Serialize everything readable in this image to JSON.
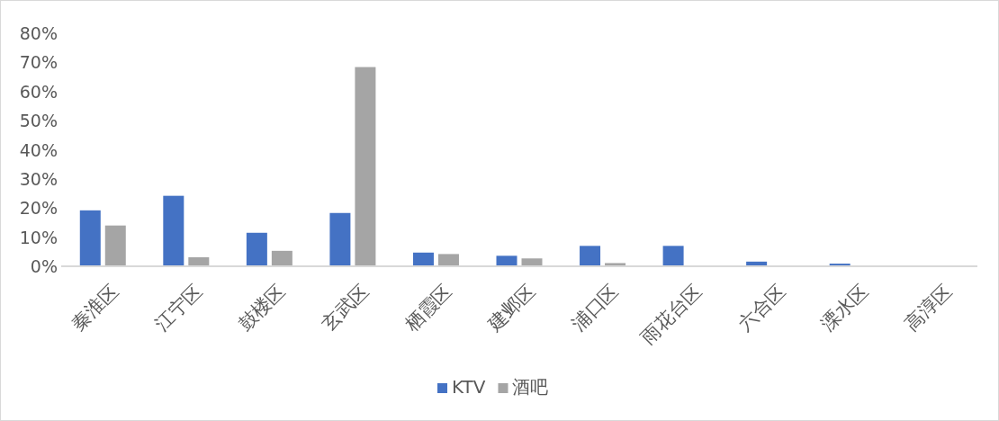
{
  "chart_data": {
    "type": "bar",
    "categories": [
      "秦淮区",
      "江宁区",
      "鼓楼区",
      "玄武区",
      "栖霞区",
      "建邺区",
      "浦口区",
      "雨花台区",
      "六合区",
      "溧水区",
      "高淳区"
    ],
    "series": [
      {
        "name": "KTV",
        "color": "#4472c4",
        "values": [
          19.2,
          24.2,
          11.5,
          18.3,
          4.7,
          3.6,
          7.0,
          7.0,
          1.6,
          0.9,
          0
        ]
      },
      {
        "name": "酒吧",
        "color": "#a5a5a5",
        "values": [
          14.0,
          3.1,
          5.3,
          68.4,
          4.2,
          2.7,
          1.1,
          0,
          0,
          0,
          0
        ]
      }
    ],
    "ylim": [
      0,
      80
    ],
    "yticks": [
      {
        "value": 0,
        "label": "0%"
      },
      {
        "value": 10,
        "label": "10%"
      },
      {
        "value": 20,
        "label": "20%"
      },
      {
        "value": 30,
        "label": "30%"
      },
      {
        "value": 40,
        "label": "40%"
      },
      {
        "value": 50,
        "label": "50%"
      },
      {
        "value": 60,
        "label": "60%"
      },
      {
        "value": 70,
        "label": "70%"
      },
      {
        "value": 80,
        "label": "80%"
      }
    ],
    "legend": "bottom"
  }
}
